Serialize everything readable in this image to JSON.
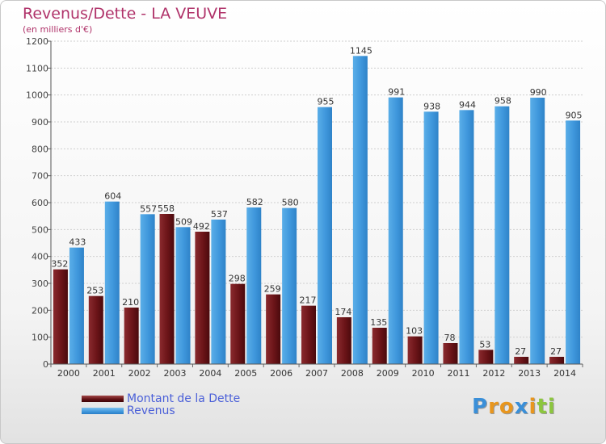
{
  "chart_data": {
    "type": "bar",
    "title": "Revenus/Dette - LA VEUVE",
    "subtitle": "(en milliers d'€)",
    "categories": [
      "2000",
      "2001",
      "2002",
      "2003",
      "2004",
      "2005",
      "2006",
      "2007",
      "2008",
      "2009",
      "2010",
      "2011",
      "2012",
      "2013",
      "2014"
    ],
    "series": [
      {
        "name": "Montant de la Dette",
        "color": "#6b1418",
        "values": [
          352,
          253,
          210,
          558,
          492,
          298,
          259,
          217,
          174,
          135,
          103,
          78,
          53,
          27,
          27
        ]
      },
      {
        "name": "Revenus",
        "color": "#3f97dc",
        "values": [
          433,
          604,
          557,
          509,
          537,
          582,
          580,
          955,
          1145,
          991,
          938,
          944,
          958,
          990,
          905
        ]
      }
    ],
    "ylim": [
      0,
      1200
    ],
    "yticks": [
      0,
      100,
      200,
      300,
      400,
      500,
      600,
      700,
      800,
      900,
      1000,
      1100,
      1200
    ],
    "grid": true,
    "legend": "bottom-left"
  },
  "logo": {
    "letters": [
      "P",
      "r",
      "o",
      "x",
      "i",
      "t",
      "i"
    ],
    "colors": [
      "#3a8fd8",
      "#e8961e",
      "#e8961e",
      "#3a8fd8",
      "#e8961e",
      "#8cc63e",
      "#8cc63e"
    ]
  }
}
